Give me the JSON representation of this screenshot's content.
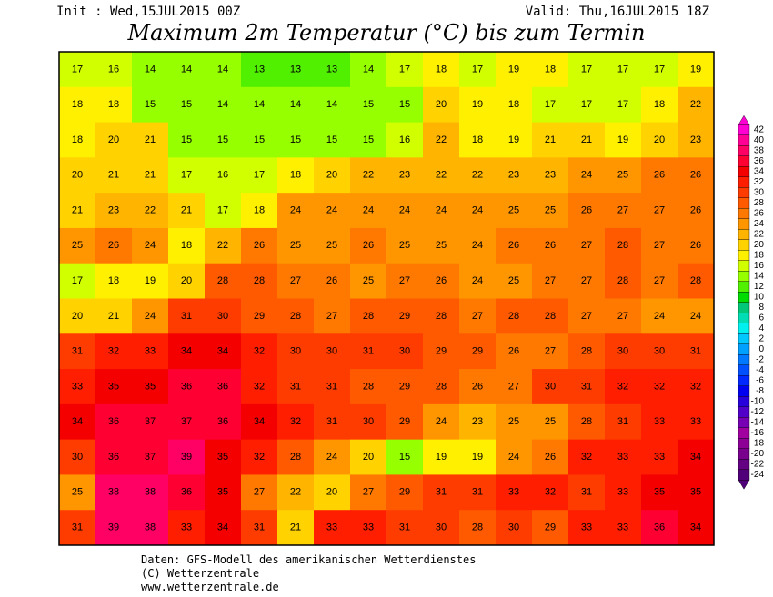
{
  "header": {
    "init": "Init : Wed,15JUL2015 00Z",
    "valid": "Valid: Thu,16JUL2015 18Z",
    "title": "Maximum 2m Temperatur (°C) bis zum Termin"
  },
  "colorbar": {
    "labels": [
      42,
      40,
      38,
      36,
      34,
      32,
      30,
      28,
      26,
      24,
      22,
      20,
      18,
      16,
      14,
      12,
      10,
      8,
      6,
      4,
      2,
      0,
      -2,
      -4,
      -6,
      -8,
      -10,
      -12,
      -14,
      -16,
      -18,
      -20,
      -22,
      -24
    ],
    "colors": [
      "#ff00d2",
      "#ff0096",
      "#ff0064",
      "#ff0032",
      "#f50000",
      "#ff1e00",
      "#ff3c00",
      "#ff5a00",
      "#ff7800",
      "#ff9600",
      "#ffb400",
      "#ffd200",
      "#fff000",
      "#d2ff00",
      "#96ff00",
      "#50f000",
      "#00dc00",
      "#00c878",
      "#00dcb4",
      "#00f0f0",
      "#00c8ff",
      "#00a0ff",
      "#0078ff",
      "#0050ff",
      "#0028ff",
      "#0000f0",
      "#2800dc",
      "#5000c8",
      "#7800b4",
      "#a000a0",
      "#8c0096",
      "#78008c",
      "#640082",
      "#500078"
    ]
  },
  "map": {
    "grid": [
      [
        17,
        16,
        14,
        14,
        14,
        13,
        13,
        13,
        14,
        17,
        18,
        17,
        19,
        18,
        17,
        17,
        17,
        19
      ],
      [
        18,
        18,
        15,
        15,
        14,
        14,
        14,
        14,
        15,
        15,
        20,
        19,
        18,
        17,
        17,
        17,
        18,
        22
      ],
      [
        18,
        20,
        21,
        15,
        15,
        15,
        15,
        15,
        15,
        16,
        22,
        18,
        19,
        21,
        21,
        19,
        20,
        23
      ],
      [
        20,
        21,
        21,
        17,
        16,
        17,
        18,
        20,
        22,
        23,
        22,
        22,
        23,
        23,
        24,
        25,
        26,
        26
      ],
      [
        21,
        23,
        22,
        21,
        17,
        18,
        24,
        24,
        24,
        24,
        24,
        24,
        25,
        25,
        26,
        27,
        27,
        26
      ],
      [
        25,
        26,
        24,
        18,
        22,
        26,
        25,
        25,
        26,
        25,
        25,
        24,
        26,
        26,
        27,
        28,
        27,
        26
      ],
      [
        17,
        18,
        19,
        20,
        28,
        28,
        27,
        26,
        25,
        27,
        26,
        24,
        25,
        27,
        27,
        28,
        27,
        28
      ],
      [
        20,
        21,
        24,
        31,
        30,
        29,
        28,
        27,
        28,
        29,
        28,
        27,
        28,
        28,
        27,
        27,
        24,
        24
      ],
      [
        31,
        32,
        33,
        34,
        34,
        32,
        30,
        30,
        31,
        30,
        29,
        29,
        26,
        27,
        28,
        30,
        30,
        31
      ],
      [
        33,
        35,
        35,
        36,
        36,
        32,
        31,
        31,
        28,
        29,
        28,
        26,
        27,
        30,
        31,
        32,
        32,
        32
      ],
      [
        34,
        36,
        37,
        37,
        36,
        34,
        32,
        31,
        30,
        29,
        24,
        23,
        25,
        25,
        28,
        31,
        33,
        33
      ],
      [
        30,
        36,
        37,
        39,
        35,
        32,
        28,
        24,
        20,
        15,
        19,
        19,
        24,
        26,
        32,
        33,
        33,
        34
      ],
      [
        25,
        38,
        38,
        36,
        35,
        27,
        22,
        20,
        27,
        29,
        31,
        31,
        33,
        32,
        31,
        33,
        35,
        35
      ],
      [
        31,
        39,
        38,
        33,
        34,
        31,
        21,
        33,
        33,
        31,
        30,
        28,
        30,
        29,
        33,
        33,
        36,
        34
      ]
    ]
  },
  "footer": {
    "source": "Daten: GFS-Modell des amerikanischen Wetterdienstes",
    "copyright": "(C) Wetterzentrale",
    "url": "www.wetterzentrale.de"
  }
}
